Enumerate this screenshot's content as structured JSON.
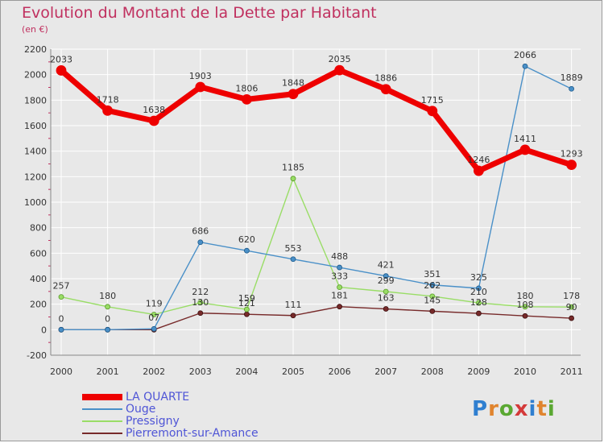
{
  "header": {
    "title": "Evolution du Montant de la Dette par Habitant",
    "subtitle": "(en €)"
  },
  "colors": {
    "background": "#e8e8e8",
    "title": "#c0305f",
    "grid": "#ffffff",
    "axis_text": "#333333",
    "legend_text": "#4f55d6"
  },
  "logo": {
    "text": "Proxiti",
    "letter_colors": [
      "#2f7fd0",
      "#e0842e",
      "#5aa832",
      "#d43a3a",
      "#2f7fd0",
      "#e0842e",
      "#5aa832"
    ]
  },
  "chart_data": {
    "type": "line",
    "title": "Evolution du Montant de la Dette par Habitant",
    "subtitle": "(en €)",
    "xlabel": "",
    "ylabel": "",
    "x": [
      "2000",
      "2001",
      "2002",
      "2003",
      "2004",
      "2005",
      "2006",
      "2007",
      "2008",
      "2009",
      "2010",
      "2011"
    ],
    "ylim": [
      -200,
      2200
    ],
    "yticks": [
      -200,
      0,
      200,
      400,
      600,
      800,
      1000,
      1200,
      1400,
      1600,
      1800,
      2000,
      2200
    ],
    "grid": true,
    "legend_position": "bottom-left",
    "series": [
      {
        "name": "LA QUARTE",
        "color": "#ee0000",
        "values": [
          2033,
          1718,
          1638,
          1903,
          1806,
          1848,
          2035,
          1886,
          1715,
          1246,
          1411,
          1293
        ],
        "labels": [
          "2033",
          "1718",
          "1638",
          "1903",
          "1806",
          "1848",
          "2035",
          "1886",
          "1715",
          "1246",
          "1411",
          "1293"
        ]
      },
      {
        "name": "Ouge",
        "color": "#4a90c8",
        "values": [
          0,
          0,
          7,
          686,
          620,
          553,
          488,
          421,
          351,
          325,
          2066,
          1889
        ],
        "labels": [
          "0",
          "0",
          "07",
          "686",
          "620",
          "553",
          "488",
          "421",
          "351",
          "325",
          "2066",
          "1889"
        ]
      },
      {
        "name": "Pressigny",
        "color": "#99dd66",
        "values": [
          257,
          180,
          119,
          212,
          159,
          1185,
          333,
          299,
          262,
          210,
          180,
          178
        ],
        "labels": [
          "257",
          "180",
          "119",
          "212",
          "159",
          "1185",
          "333",
          "299",
          "262",
          "210",
          "180",
          "178"
        ]
      },
      {
        "name": "Pierremont-sur-Amance",
        "color": "#772a2a",
        "values": [
          0,
          0,
          0,
          130,
          121,
          111,
          181,
          163,
          145,
          128,
          108,
          90
        ],
        "labels": [
          "",
          "",
          "",
          "130",
          "121",
          "111",
          "181",
          "163",
          "145",
          "128",
          "108",
          "90"
        ]
      }
    ]
  }
}
